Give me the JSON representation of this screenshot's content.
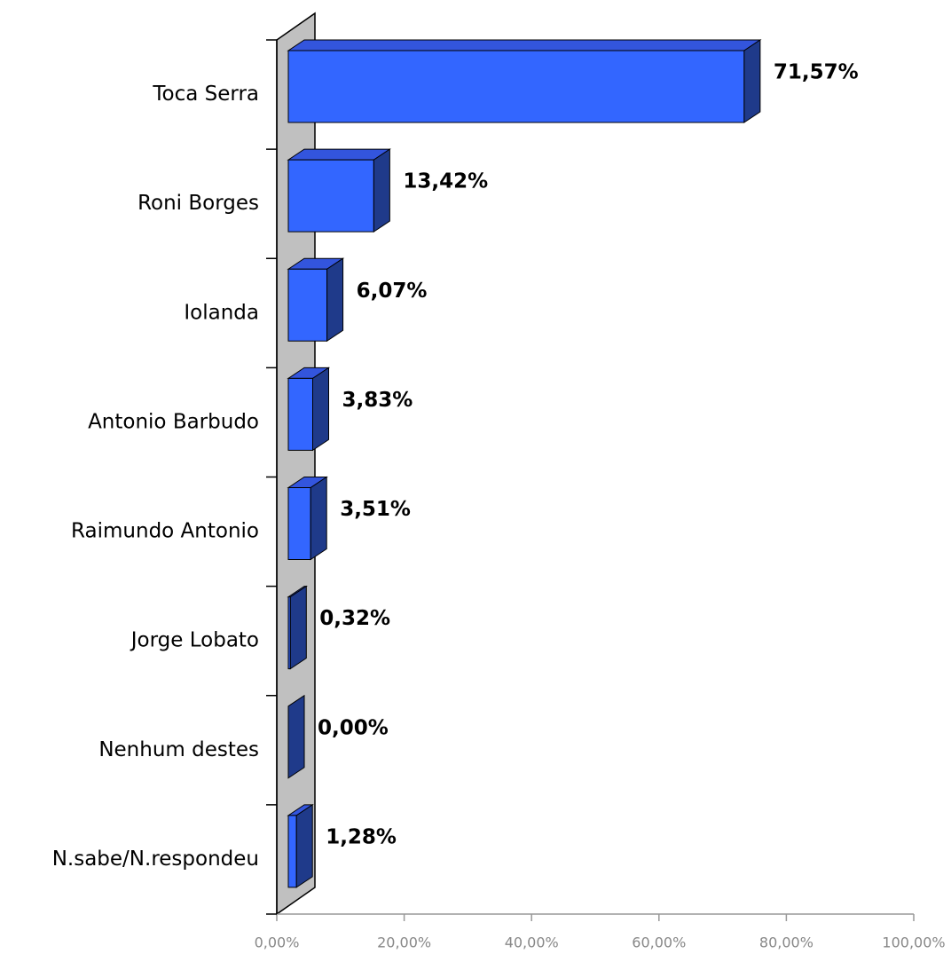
{
  "chart_data": {
    "type": "bar3d_horizontal",
    "categories": [
      "Toca Serra",
      "Roni Borges",
      "Iolanda",
      "Antonio Barbudo",
      "Raimundo Antonio",
      "Jorge Lobato",
      "Nenhum destes",
      "N.sabe/N.respondeu"
    ],
    "values": [
      71.57,
      13.42,
      6.07,
      3.83,
      3.51,
      0.32,
      0.0,
      1.28
    ],
    "value_labels": [
      "71,57%",
      "13,42%",
      "6,07%",
      "3,83%",
      "3,51%",
      "0,32%",
      "0,00%",
      "1,28%"
    ],
    "color": "#3366ff",
    "xlim": [
      0,
      100
    ],
    "xticks": [
      {
        "value": 0,
        "label": "0,00%"
      },
      {
        "value": 20,
        "label": "20,00%"
      },
      {
        "value": 40,
        "label": "40,00%"
      },
      {
        "value": 60,
        "label": "60,00%"
      },
      {
        "value": 80,
        "label": "80,00%"
      },
      {
        "value": 100,
        "label": "100,00%"
      }
    ]
  }
}
